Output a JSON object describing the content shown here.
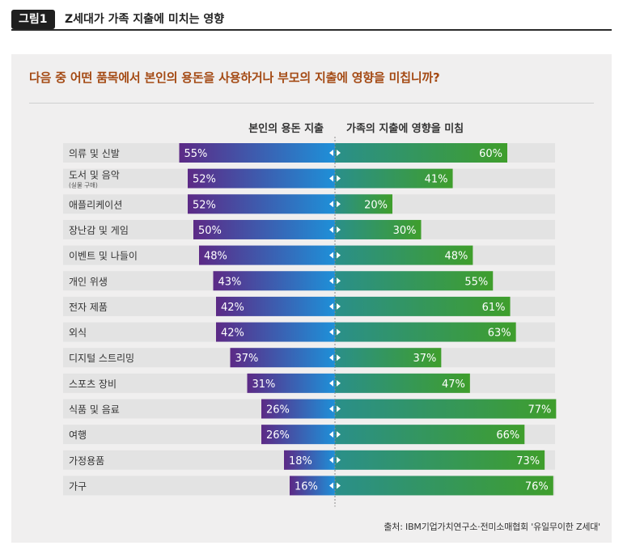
{
  "figure": {
    "tag": "그림1",
    "title": "Z세대가 가족 지출에 미치는 영향"
  },
  "question": "다음 중 어떤 품목에서 본인의 용돈을 사용하거나 부모의 지출에 영향을 미칩니까?",
  "source": "출처: IBM기업가치연구소·전미소매협회 '유일무이한 Z세대'",
  "colors": {
    "left_start": "#5c2a86",
    "left_end": "#1e90d8",
    "right_start": "#2a8f8a",
    "right_end": "#3f9e2c",
    "row_bg": "#e3e3e3",
    "question": "#a44a14"
  },
  "chart_data": {
    "type": "bar",
    "orientation": "horizontal-diverging",
    "series": [
      {
        "name": "본인의 용돈 지출",
        "values": [
          55,
          52,
          52,
          50,
          48,
          43,
          42,
          42,
          37,
          31,
          26,
          26,
          18,
          16
        ]
      },
      {
        "name": "가족의 지출에 영향을 미침",
        "values": [
          60,
          41,
          20,
          30,
          48,
          55,
          61,
          63,
          37,
          47,
          77,
          66,
          73,
          76
        ]
      }
    ],
    "categories": [
      "의류 및 신발",
      "도서 및 음악",
      "애플리케이션",
      "장난감 및 게임",
      "이벤트 및 나들이",
      "개인 위생",
      "전자 제품",
      "외식",
      "디지털 스트리밍",
      "스포츠 장비",
      "식품 및 음료",
      "여행",
      "가정용품",
      "가구"
    ],
    "category_notes": [
      "",
      "(실물 구매)",
      "",
      "",
      "",
      "",
      "",
      "",
      "",
      "",
      "",
      "",
      "",
      ""
    ],
    "value_suffix": "%",
    "xlim": [
      0,
      100
    ]
  }
}
